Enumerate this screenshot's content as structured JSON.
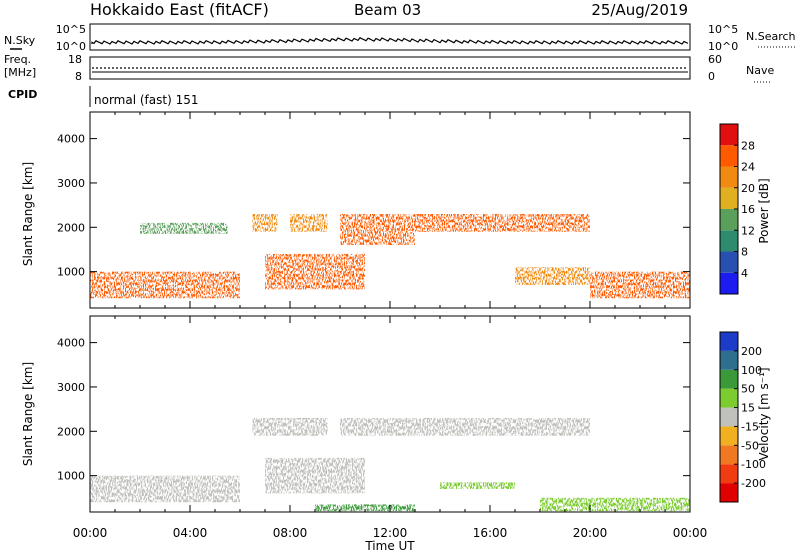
{
  "header": {
    "radar": "Hokkaido East (fitACF)",
    "beam": "Beam 03",
    "date": "25/Aug/2019"
  },
  "status_panels": {
    "nsky": {
      "label": "N.Sky",
      "tick_top": "10^5",
      "tick_bottom": "10^0",
      "right_label": "N.Search"
    },
    "freq": {
      "label_line1": "Freq.",
      "label_line2": "[MHz]",
      "tick_top": "18",
      "tick_bottom": "8",
      "right_top": "60",
      "right_bottom": "0",
      "right_label": "Nave"
    },
    "cpid": {
      "label": "CPID",
      "text": "normal (fast) 151"
    }
  },
  "time_axis": {
    "label": "Time UT",
    "ticks": [
      "00:00",
      "04:00",
      "08:00",
      "12:00",
      "16:00",
      "20:00",
      "00:00"
    ]
  },
  "chart_data": [
    {
      "type": "heatmap",
      "name": "power",
      "xlabel": "Time UT",
      "ylabel": "Slant Range [km]",
      "x_ticks": [
        "00:00",
        "04:00",
        "08:00",
        "12:00",
        "16:00",
        "20:00",
        "00:00"
      ],
      "y_ticks": [
        1000,
        2000,
        3000,
        4000
      ],
      "ylim": [
        180,
        4600
      ],
      "colorbar": {
        "label": "Power [dB]",
        "ticks": [
          4,
          8,
          12,
          16,
          20,
          24,
          28
        ]
      },
      "regions": [
        {
          "t0": 0.0,
          "t1": 6.0,
          "r0": 400,
          "r1": 1000,
          "level": 26
        },
        {
          "t0": 2.0,
          "t1": 5.5,
          "r0": 1850,
          "r1": 2100,
          "level": 14
        },
        {
          "t0": 6.5,
          "t1": 7.5,
          "r0": 1900,
          "r1": 2300,
          "level": 22
        },
        {
          "t0": 7.0,
          "t1": 11.0,
          "r0": 600,
          "r1": 1400,
          "level": 26
        },
        {
          "t0": 8.0,
          "t1": 9.5,
          "r0": 1900,
          "r1": 2300,
          "level": 22
        },
        {
          "t0": 10.0,
          "t1": 13.0,
          "r0": 1600,
          "r1": 2300,
          "level": 24
        },
        {
          "t0": 13.0,
          "t1": 20.0,
          "r0": 1900,
          "r1": 2300,
          "level": 24
        },
        {
          "t0": 17.0,
          "t1": 20.0,
          "r0": 700,
          "r1": 1100,
          "level": 20
        },
        {
          "t0": 20.0,
          "t1": 24.0,
          "r0": 400,
          "r1": 1000,
          "level": 26
        }
      ]
    },
    {
      "type": "heatmap",
      "name": "velocity",
      "xlabel": "Time UT",
      "ylabel": "Slant Range [km]",
      "x_ticks": [
        "00:00",
        "04:00",
        "08:00",
        "12:00",
        "16:00",
        "20:00",
        "00:00"
      ],
      "y_ticks": [
        1000,
        2000,
        3000,
        4000
      ],
      "ylim": [
        180,
        4600
      ],
      "colorbar": {
        "label": "Velocity [m s⁻¹]",
        "ticks": [
          200,
          100,
          50,
          15,
          -15,
          -50,
          -100,
          -200
        ]
      },
      "regions": [
        {
          "t0": 0.0,
          "t1": 6.0,
          "r0": 400,
          "r1": 1000,
          "velocity": 0
        },
        {
          "t0": 6.5,
          "t1": 9.5,
          "r0": 1900,
          "r1": 2300,
          "velocity": 0
        },
        {
          "t0": 7.0,
          "t1": 11.0,
          "r0": 600,
          "r1": 1400,
          "velocity": 0
        },
        {
          "t0": 10.0,
          "t1": 20.0,
          "r0": 1900,
          "r1": 2300,
          "velocity": 0
        },
        {
          "t0": 9.0,
          "t1": 13.0,
          "r0": 200,
          "r1": 350,
          "velocity": 60
        },
        {
          "t0": 14.0,
          "t1": 17.0,
          "r0": 700,
          "r1": 850,
          "velocity": 40
        },
        {
          "t0": 18.0,
          "t1": 24.0,
          "r0": 200,
          "r1": 500,
          "velocity": 30
        }
      ]
    }
  ]
}
